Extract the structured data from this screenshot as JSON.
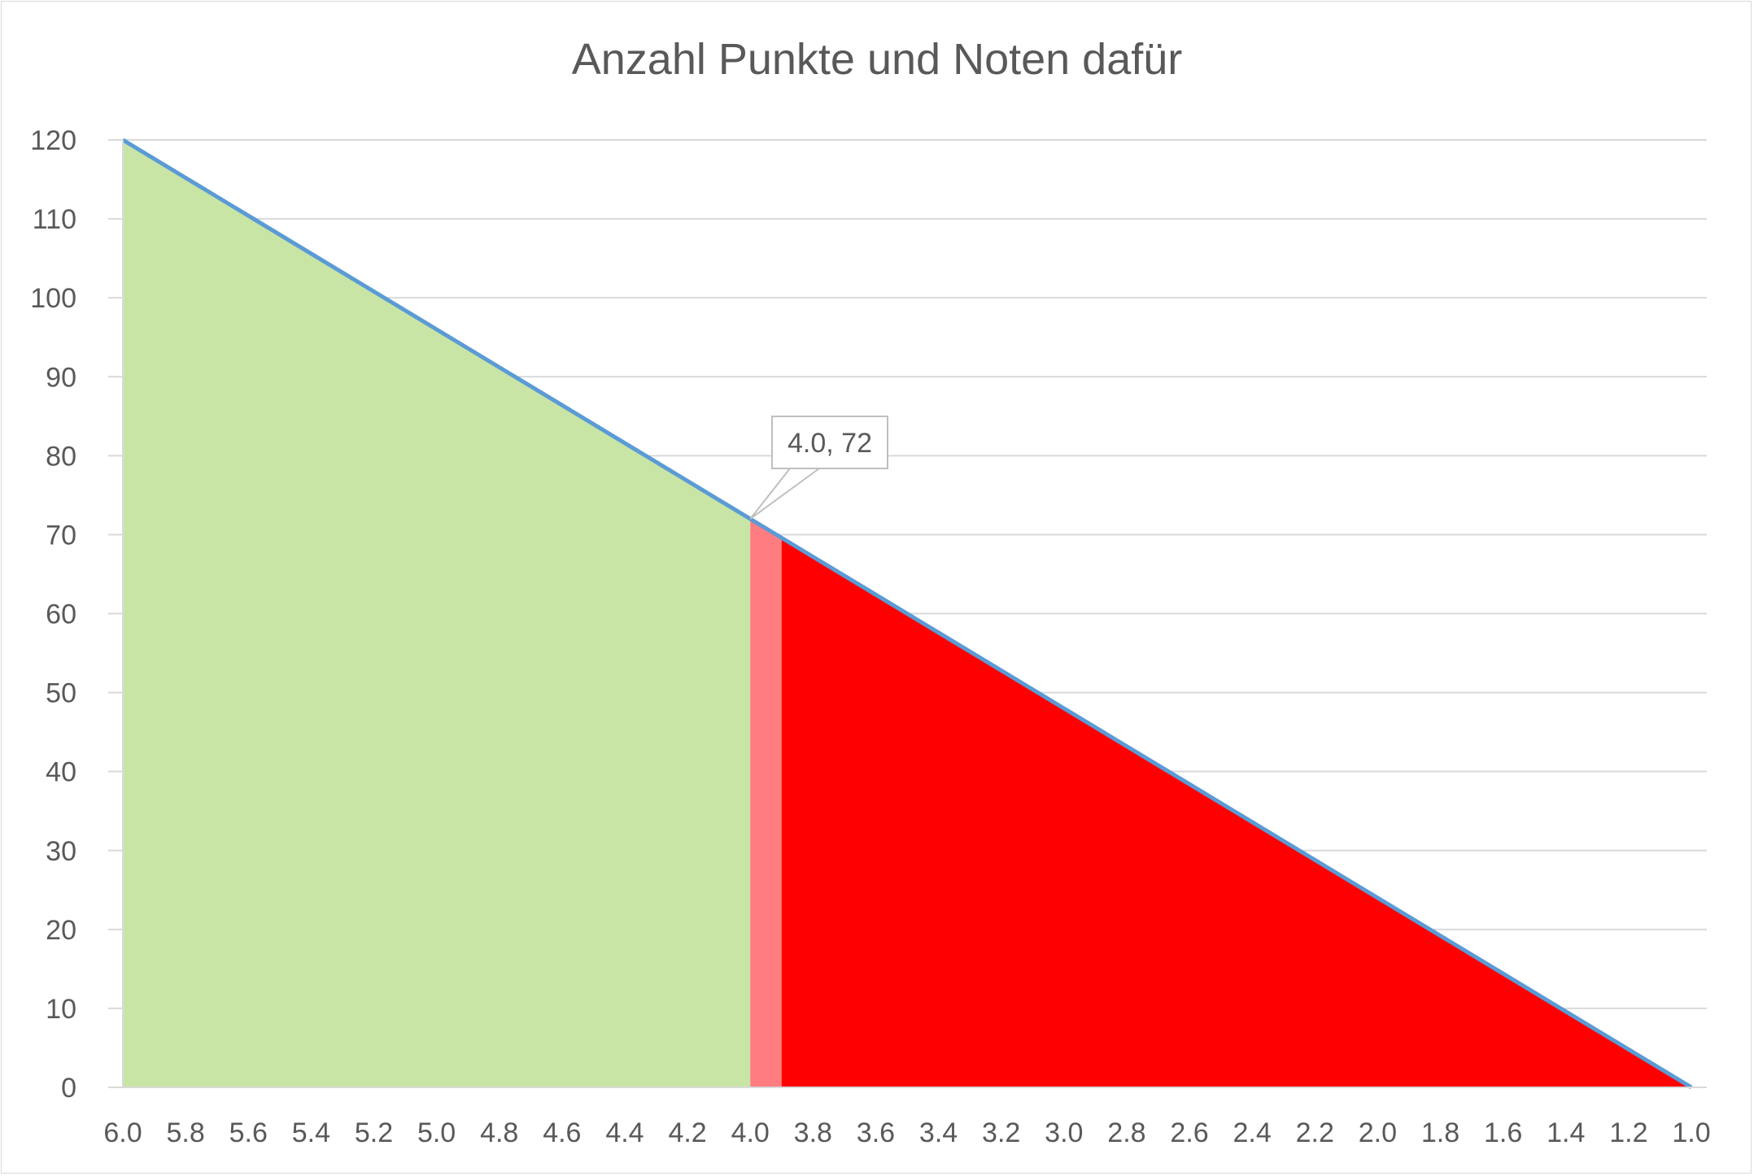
{
  "chart_data": {
    "type": "area",
    "title": "Anzahl Punkte und Noten dafür",
    "x": [
      "6.0",
      "5.8",
      "5.6",
      "5.4",
      "5.2",
      "5.0",
      "4.8",
      "4.6",
      "4.4",
      "4.2",
      "4.0",
      "3.8",
      "3.6",
      "3.4",
      "3.2",
      "3.0",
      "2.8",
      "2.6",
      "2.4",
      "2.2",
      "2.0",
      "1.8",
      "1.6",
      "1.4",
      "1.2",
      "1.0"
    ],
    "y": [
      120,
      115.2,
      110.4,
      105.6,
      100.8,
      96,
      91.2,
      86.4,
      81.6,
      76.8,
      72,
      67.2,
      62.4,
      57.6,
      52.8,
      48,
      43.2,
      38.4,
      33.6,
      28.8,
      24,
      19.2,
      14.4,
      9.6,
      4.8,
      0
    ],
    "ylim": [
      0,
      120
    ],
    "yticks": [
      0,
      10,
      20,
      30,
      40,
      50,
      60,
      70,
      80,
      90,
      100,
      110,
      120
    ],
    "xlim": [
      6.0,
      1.0
    ],
    "x_reversed": true,
    "grid": true,
    "regions": [
      {
        "from": 6.0,
        "to": 4.0,
        "color": "#c9e5a6"
      },
      {
        "from": 4.0,
        "to": 3.9,
        "color": "#ff7c80"
      },
      {
        "from": 3.9,
        "to": 1.0,
        "color": "#ff0000"
      }
    ],
    "line_color": "#5b9bd5",
    "annotation": {
      "x": 4.0,
      "y": 72,
      "text": "4.0, 72"
    }
  }
}
